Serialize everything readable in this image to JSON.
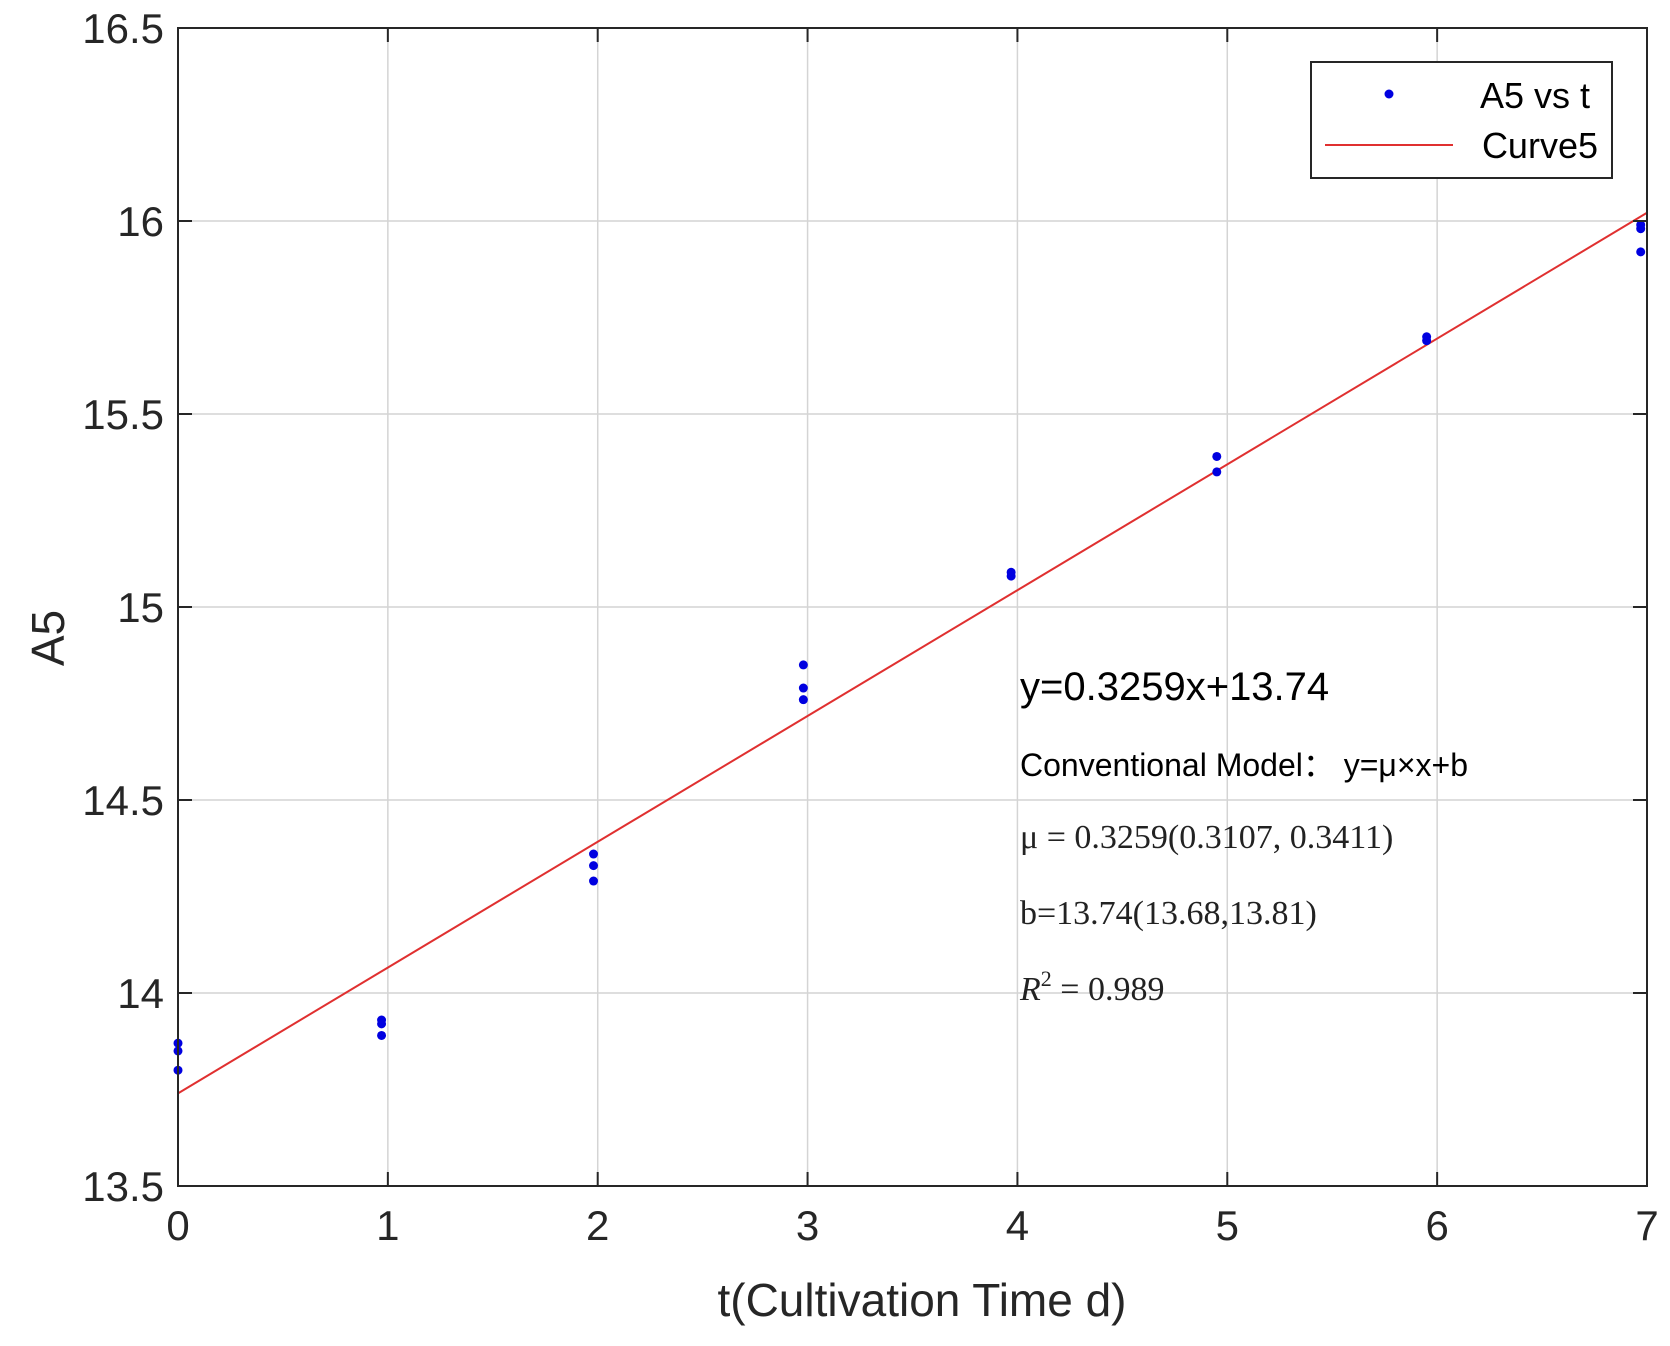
{
  "chart_data": {
    "type": "scatter",
    "xlabel": "t(Cultivation Time d)",
    "ylabel": "A5",
    "xlim": [
      0,
      7
    ],
    "ylim": [
      13.5,
      16.5
    ],
    "xticks": [
      0,
      1,
      2,
      3,
      4,
      5,
      6,
      7
    ],
    "xtick_labels": [
      "0",
      "1",
      "2",
      "3",
      "4",
      "5",
      "6",
      "7"
    ],
    "yticks": [
      13.5,
      14,
      14.5,
      15,
      15.5,
      16,
      16.5
    ],
    "ytick_labels": [
      "13.5",
      "14",
      "14.5",
      "15",
      "15.5",
      "16",
      "16.5"
    ],
    "grid": true,
    "legend_position": "top-right",
    "series": [
      {
        "name": "A5 vs t",
        "kind": "points",
        "color": "#0000e0",
        "points": [
          {
            "x": 0,
            "y": 13.87
          },
          {
            "x": 0,
            "y": 13.85
          },
          {
            "x": 0,
            "y": 13.8
          },
          {
            "x": 0.97,
            "y": 13.93
          },
          {
            "x": 0.97,
            "y": 13.92
          },
          {
            "x": 0.97,
            "y": 13.89
          },
          {
            "x": 1.98,
            "y": 14.36
          },
          {
            "x": 1.98,
            "y": 14.33
          },
          {
            "x": 1.98,
            "y": 14.29
          },
          {
            "x": 2.98,
            "y": 14.85
          },
          {
            "x": 2.98,
            "y": 14.79
          },
          {
            "x": 2.98,
            "y": 14.76
          },
          {
            "x": 3.97,
            "y": 15.09
          },
          {
            "x": 3.97,
            "y": 15.08
          },
          {
            "x": 4.95,
            "y": 15.39
          },
          {
            "x": 4.95,
            "y": 15.35
          },
          {
            "x": 5.95,
            "y": 15.7
          },
          {
            "x": 5.95,
            "y": 15.69
          },
          {
            "x": 6.97,
            "y": 15.99
          },
          {
            "x": 6.97,
            "y": 15.98
          },
          {
            "x": 6.97,
            "y": 15.92
          }
        ]
      },
      {
        "name": "Curve5",
        "kind": "line",
        "color": "#e03030",
        "slope": 0.3259,
        "intercept": 13.74,
        "x_range": [
          0,
          7
        ]
      }
    ],
    "annotations": {
      "equation": "y=0.3259x+13.74",
      "model": "Conventional Model：  y=μ×x+b",
      "mu": "μ = 0.3259(0.3107, 0.3411)",
      "b": "b=13.74(13.68,13.81)",
      "r2_prefix": "R",
      "r2_sup": "2",
      "r2_value": " = 0.989"
    }
  }
}
